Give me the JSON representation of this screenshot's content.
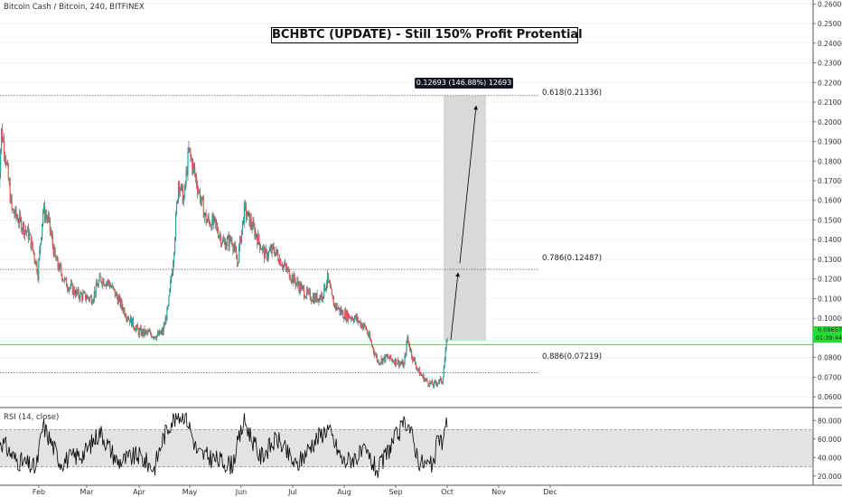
{
  "header": "Bitcoin Cash / Bitcoin, 240, BITFINEX",
  "title": "BCHBTC (UPDATE) - Still 150% Profit Protential",
  "measure_label": "0.12693 (146.88%) 12693",
  "fib_levels": [
    {
      "label": "0.618(0.21336)",
      "value": 0.21336
    },
    {
      "label": "0.786(0.12487)",
      "value": 0.12487
    },
    {
      "label": "0.886(0.07219)",
      "value": 0.07219
    }
  ],
  "price_tags": [
    "0.08657",
    "01:39:44"
  ],
  "rsi_label": "RSI (14, close)",
  "colors": {
    "up": "#26a69a",
    "down": "#ef5350",
    "current_line": "#22dd33",
    "fib": "#555555",
    "rsi": "#000000",
    "box": "#d9d9d9"
  },
  "chart_data": {
    "type": "line",
    "subtype": "candlestick",
    "x_ticks": [
      "Feb",
      "Mar",
      "Apr",
      "May",
      "Jun",
      "Jul",
      "Aug",
      "Sep",
      "Oct",
      "Nov",
      "Dec"
    ],
    "y_ticks": [
      "0.26000",
      "0.25000",
      "0.24000",
      "0.23000",
      "0.22000",
      "0.21000",
      "0.20000",
      "0.19000",
      "0.18000",
      "0.17000",
      "0.16000",
      "0.15000",
      "0.14000",
      "0.13000",
      "0.12000",
      "0.11000",
      "0.10000",
      "0.09000",
      "0.08000",
      "0.07000",
      "0.06000"
    ],
    "ylim": [
      0.055,
      0.262
    ],
    "price_path": [
      [
        "2018-01-10",
        0.16
      ],
      [
        "2018-01-12",
        0.195
      ],
      [
        "2018-01-14",
        0.185
      ],
      [
        "2018-01-18",
        0.155
      ],
      [
        "2018-01-22",
        0.15
      ],
      [
        "2018-01-28",
        0.142
      ],
      [
        "2018-02-01",
        0.128
      ],
      [
        "2018-02-02",
        0.123
      ],
      [
        "2018-02-05",
        0.155
      ],
      [
        "2018-02-08",
        0.15
      ],
      [
        "2018-02-12",
        0.13
      ],
      [
        "2018-02-18",
        0.118
      ],
      [
        "2018-02-25",
        0.112
      ],
      [
        "2018-03-05",
        0.11
      ],
      [
        "2018-03-10",
        0.12
      ],
      [
        "2018-03-15",
        0.118
      ],
      [
        "2018-03-20",
        0.11
      ],
      [
        "2018-03-25",
        0.102
      ],
      [
        "2018-04-01",
        0.093
      ],
      [
        "2018-04-08",
        0.092
      ],
      [
        "2018-04-12",
        0.091
      ],
      [
        "2018-04-15",
        0.093
      ],
      [
        "2018-04-18",
        0.105
      ],
      [
        "2018-04-21",
        0.13
      ],
      [
        "2018-04-24",
        0.17
      ],
      [
        "2018-04-27",
        0.16
      ],
      [
        "2018-04-30",
        0.185
      ],
      [
        "2018-05-03",
        0.175
      ],
      [
        "2018-05-07",
        0.16
      ],
      [
        "2018-05-10",
        0.15
      ],
      [
        "2018-05-15",
        0.148
      ],
      [
        "2018-05-20",
        0.138
      ],
      [
        "2018-05-25",
        0.14
      ],
      [
        "2018-05-28",
        0.128
      ],
      [
        "2018-06-01",
        0.155
      ],
      [
        "2018-06-04",
        0.15
      ],
      [
        "2018-06-08",
        0.142
      ],
      [
        "2018-06-13",
        0.132
      ],
      [
        "2018-06-18",
        0.135
      ],
      [
        "2018-06-25",
        0.125
      ],
      [
        "2018-07-01",
        0.118
      ],
      [
        "2018-07-07",
        0.112
      ],
      [
        "2018-07-12",
        0.11
      ],
      [
        "2018-07-16",
        0.112
      ],
      [
        "2018-07-19",
        0.12
      ],
      [
        "2018-07-22",
        0.108
      ],
      [
        "2018-07-28",
        0.102
      ],
      [
        "2018-08-04",
        0.1
      ],
      [
        "2018-08-10",
        0.095
      ],
      [
        "2018-08-14",
        0.085
      ],
      [
        "2018-08-17",
        0.078
      ],
      [
        "2018-08-22",
        0.08
      ],
      [
        "2018-08-28",
        0.078
      ],
      [
        "2018-09-01",
        0.076
      ],
      [
        "2018-09-03",
        0.09
      ],
      [
        "2018-09-06",
        0.08
      ],
      [
        "2018-09-10",
        0.072
      ],
      [
        "2018-09-14",
        0.068
      ],
      [
        "2018-09-18",
        0.066
      ],
      [
        "2018-09-21",
        0.068
      ],
      [
        "2018-09-23",
        0.068
      ],
      [
        "2018-09-24",
        0.075
      ],
      [
        "2018-09-26",
        0.09
      ]
    ],
    "rsi": {
      "y_ticks": [
        "80.0000",
        "60.0000",
        "40.0000",
        "20.0000"
      ],
      "ylim": [
        10,
        92
      ],
      "band": [
        30,
        70
      ],
      "path": [
        [
          "2018-01-10",
          62
        ],
        [
          "2018-01-20",
          38
        ],
        [
          "2018-02-01",
          28
        ],
        [
          "2018-02-05",
          75
        ],
        [
          "2018-02-15",
          35
        ],
        [
          "2018-03-01",
          45
        ],
        [
          "2018-03-10",
          68
        ],
        [
          "2018-03-20",
          35
        ],
        [
          "2018-04-01",
          42
        ],
        [
          "2018-04-10",
          28
        ],
        [
          "2018-04-15",
          60
        ],
        [
          "2018-04-20",
          80
        ],
        [
          "2018-04-28",
          88
        ],
        [
          "2018-05-05",
          45
        ],
        [
          "2018-05-15",
          38
        ],
        [
          "2018-05-25",
          32
        ],
        [
          "2018-06-01",
          80
        ],
        [
          "2018-06-10",
          40
        ],
        [
          "2018-06-20",
          60
        ],
        [
          "2018-07-01",
          30
        ],
        [
          "2018-07-10",
          55
        ],
        [
          "2018-07-19",
          72
        ],
        [
          "2018-07-28",
          35
        ],
        [
          "2018-08-10",
          45
        ],
        [
          "2018-08-17",
          25
        ],
        [
          "2018-08-25",
          55
        ],
        [
          "2018-09-03",
          80
        ],
        [
          "2018-09-10",
          35
        ],
        [
          "2018-09-18",
          30
        ],
        [
          "2018-09-21",
          65
        ],
        [
          "2018-09-23",
          55
        ],
        [
          "2018-09-26",
          80
        ]
      ]
    }
  }
}
